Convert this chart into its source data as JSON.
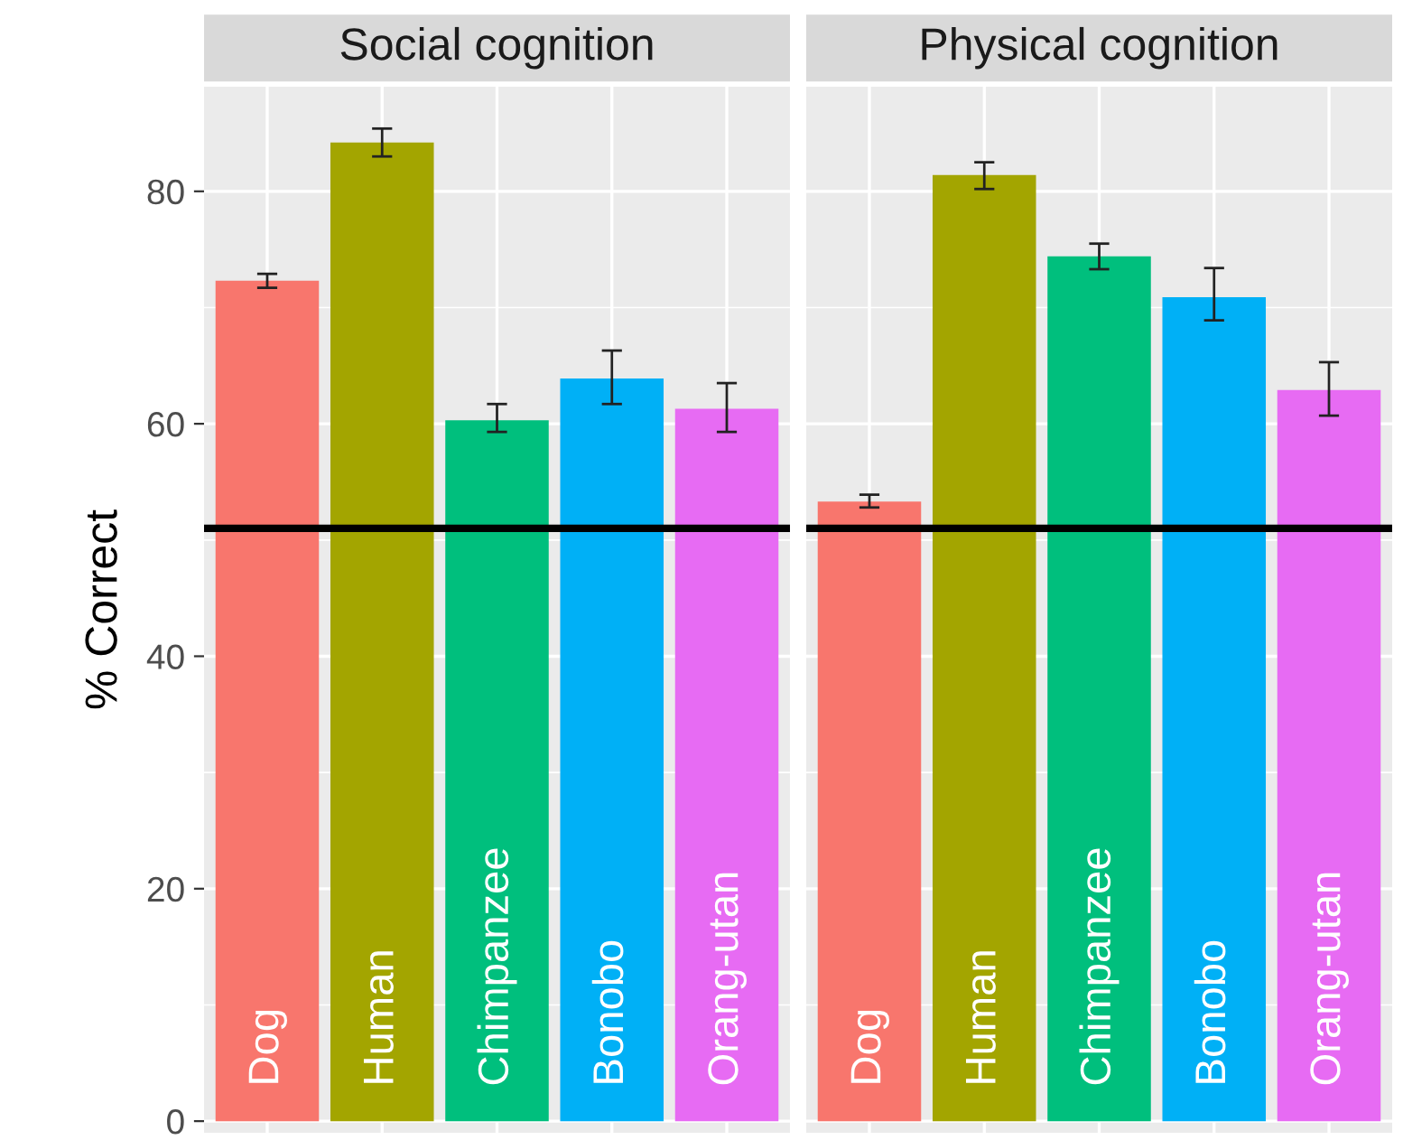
{
  "chart_data": [
    {
      "type": "bar",
      "title": "Social cognition",
      "ylabel": "% Correct",
      "categories": [
        "Dog",
        "Human",
        "Chimpanzee",
        "Bonobo",
        "Orang-utan"
      ],
      "values": [
        72.3,
        84.2,
        60.3,
        63.9,
        61.3
      ],
      "errors": [
        [
          71.7,
          72.9
        ],
        [
          83.0,
          85.4
        ],
        [
          59.3,
          61.7
        ],
        [
          61.7,
          66.3
        ],
        [
          59.3,
          63.5
        ]
      ],
      "colors": [
        "#f8766d",
        "#a3a500",
        "#00bf7d",
        "#00b0f6",
        "#e76bf3"
      ],
      "ylim": [
        -1,
        89
      ],
      "yticks": [
        0,
        20,
        40,
        60,
        80
      ],
      "grid": true,
      "tick_labels": "y",
      "ref_lines": [
        {
          "axis": "y",
          "value": 51.0,
          "color": "#000000"
        }
      ]
    },
    {
      "type": "bar",
      "title": "Physical cognition",
      "categories": [
        "Dog",
        "Human",
        "Chimpanzee",
        "Bonobo",
        "Orang-utan"
      ],
      "values": [
        53.3,
        81.4,
        74.4,
        70.9,
        62.9
      ],
      "errors": [
        [
          52.8,
          53.9
        ],
        [
          80.2,
          82.5
        ],
        [
          73.3,
          75.5
        ],
        [
          68.9,
          73.4
        ],
        [
          60.7,
          65.3
        ]
      ],
      "colors": [
        "#f8766d",
        "#a3a500",
        "#00bf7d",
        "#00b0f6",
        "#e76bf3"
      ],
      "ylim": [
        -1,
        89
      ],
      "yticks": [
        0,
        20,
        40,
        60,
        80
      ],
      "grid": true,
      "tick_labels": false,
      "ref_lines": [
        {
          "axis": "y",
          "value": 51.0,
          "color": "#000000"
        }
      ]
    }
  ]
}
